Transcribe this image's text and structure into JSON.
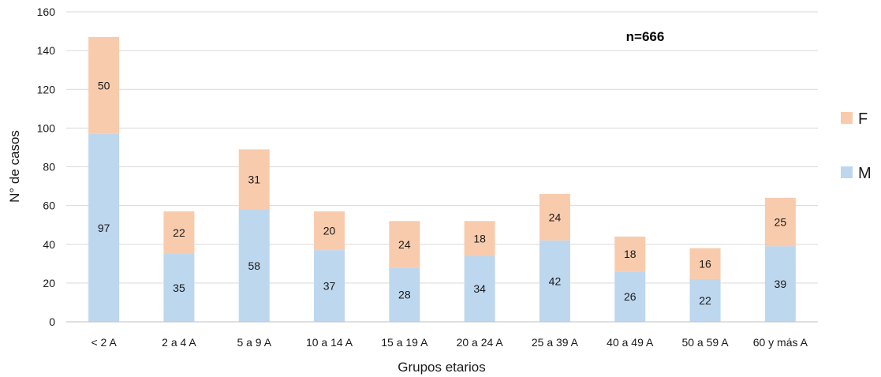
{
  "chart_data": {
    "type": "bar",
    "stacked": true,
    "title": "",
    "xlabel": "Grupos etarios",
    "ylabel": "N° de casos",
    "ylim": [
      0,
      160
    ],
    "yticks": [
      0,
      20,
      40,
      60,
      80,
      100,
      120,
      140,
      160
    ],
    "grid": true,
    "legend_position": "right",
    "annotation": "n=666",
    "categories": [
      "< 2 A",
      "2 a 4 A",
      "5 a 9 A",
      "10 a 14 A",
      "15 a 19 A",
      "20 a 24 A",
      "25 a 39 A",
      "40 a 49 A",
      "50 a 59 A",
      "60 y más A"
    ],
    "series": [
      {
        "name": "M",
        "color": "#bdd7ee",
        "values": [
          97,
          35,
          58,
          37,
          28,
          34,
          42,
          26,
          22,
          39
        ]
      },
      {
        "name": "F",
        "color": "#f8cbad",
        "values": [
          50,
          22,
          31,
          20,
          24,
          18,
          24,
          18,
          16,
          25
        ]
      }
    ],
    "legend_order": [
      "F",
      "M"
    ]
  }
}
